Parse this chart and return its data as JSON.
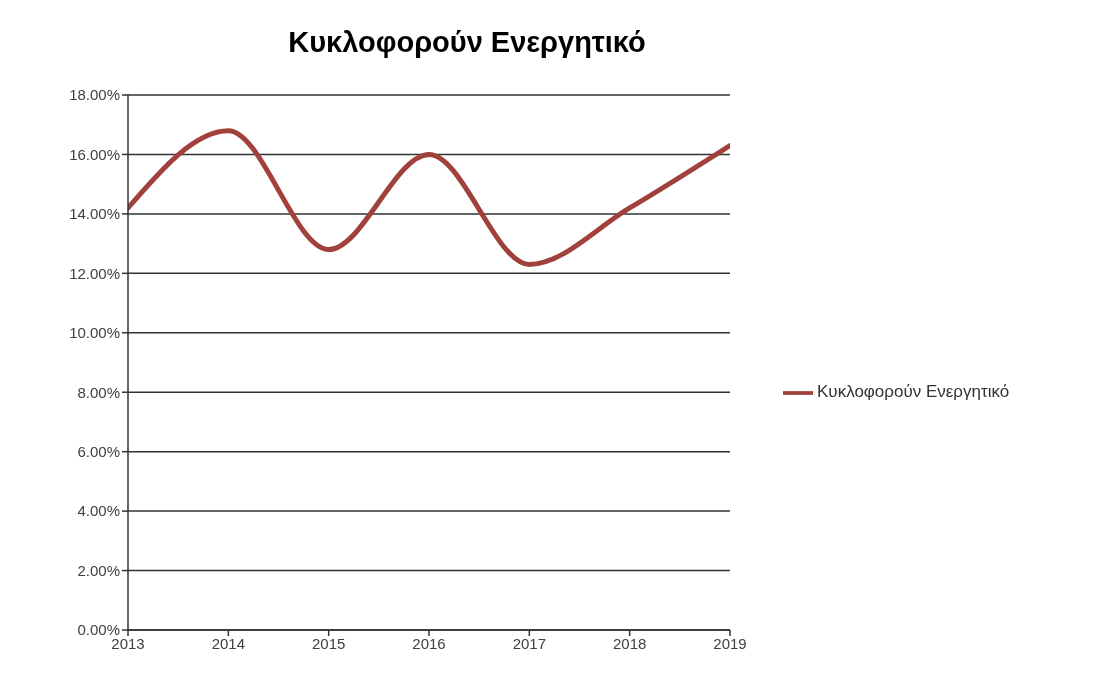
{
  "chart_data": {
    "type": "line",
    "title": "Κυκλοφορούν Ενεργητικό",
    "x": [
      2013,
      2014,
      2015,
      2016,
      2017,
      2018,
      2019
    ],
    "series": [
      {
        "name": "Κυκλοφορούν Ενεργητικό",
        "color": "#a0413c",
        "values": [
          14.2,
          16.8,
          12.8,
          16.0,
          12.3,
          14.2,
          16.3
        ]
      }
    ],
    "xlim": [
      2013,
      2019
    ],
    "xticks": [
      2013,
      2014,
      2015,
      2016,
      2017,
      2018,
      2019
    ],
    "ylim": [
      0,
      18
    ],
    "yticks": [
      {
        "value": 0,
        "label": "0.00%"
      },
      {
        "value": 2,
        "label": "2.00%"
      },
      {
        "value": 4,
        "label": "4.00%"
      },
      {
        "value": 6,
        "label": "6.00%"
      },
      {
        "value": 8,
        "label": "8.00%"
      },
      {
        "value": 10,
        "label": "10.00%"
      },
      {
        "value": 12,
        "label": "12.00%"
      },
      {
        "value": 14,
        "label": "14.00%"
      },
      {
        "value": 16,
        "label": "16.00%"
      },
      {
        "value": 18,
        "label": "18.00%"
      }
    ],
    "grid": "y",
    "legend": "right",
    "marker": "none",
    "line_style": "solid"
  }
}
